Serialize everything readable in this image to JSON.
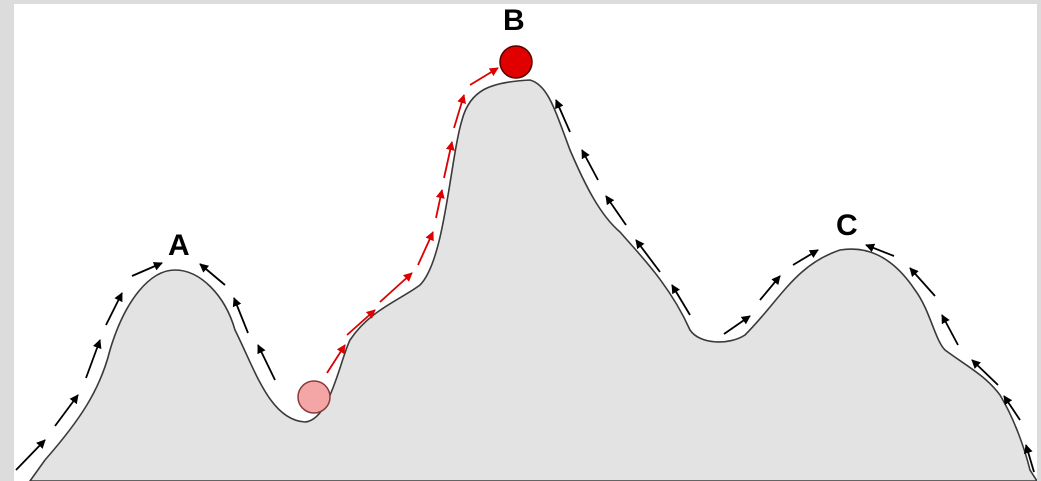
{
  "labels": {
    "a": "A",
    "b": "B",
    "c": "C"
  },
  "colors": {
    "terrain_fill": "#e3e3e3",
    "terrain_stroke": "#3a3a3a",
    "path_arrow": "#000000",
    "climb_arrow": "#dd0000",
    "ball_start": "#f4a6a6",
    "ball_end": "#e00000",
    "background": "#ffffff"
  }
}
